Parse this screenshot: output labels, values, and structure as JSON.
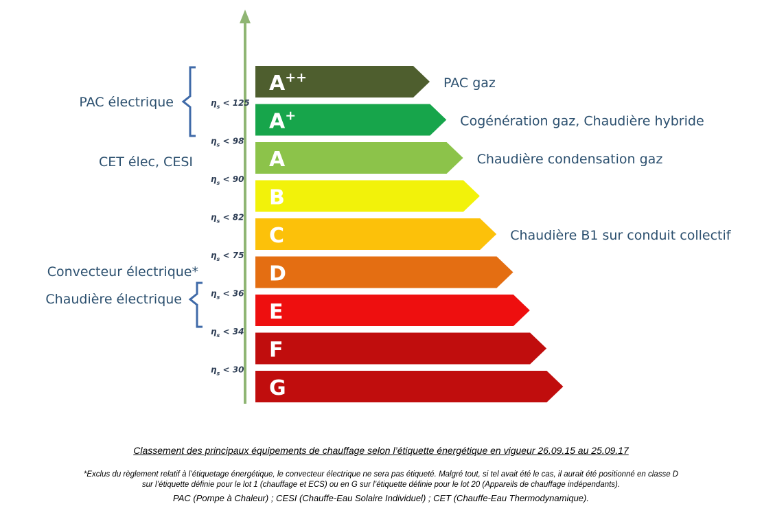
{
  "diagram": {
    "grades": [
      {
        "letter": "A",
        "sup": "++",
        "color": "#4e5e2e",
        "equipment": "PAC gaz"
      },
      {
        "letter": "A",
        "sup": "+",
        "color": "#17a54b",
        "equipment": "Cogénération gaz, Chaudière hybride"
      },
      {
        "letter": "A",
        "sup": "",
        "color": "#8cc34a",
        "equipment": "Chaudière condensation gaz"
      },
      {
        "letter": "B",
        "sup": "",
        "color": "#f2f20a",
        "equipment": ""
      },
      {
        "letter": "C",
        "sup": "",
        "color": "#fcc10a",
        "equipment": "Chaudière B1 sur conduit collectif"
      },
      {
        "letter": "D",
        "sup": "",
        "color": "#e46e12",
        "equipment": ""
      },
      {
        "letter": "E",
        "sup": "",
        "color": "#ee0f0f",
        "equipment": ""
      },
      {
        "letter": "F",
        "sup": "",
        "color": "#c00d0d",
        "equipment": ""
      },
      {
        "letter": "G",
        "sup": "",
        "color": "#c00d0d",
        "equipment": ""
      }
    ],
    "thresholds": [
      {
        "symbol": "η",
        "sub": "s",
        "text": " < 125"
      },
      {
        "symbol": "η",
        "sub": "s",
        "text": " < 98"
      },
      {
        "symbol": "η",
        "sub": "s",
        "text": " < 90"
      },
      {
        "symbol": "η",
        "sub": "s",
        "text": " < 82"
      },
      {
        "symbol": "η",
        "sub": "s",
        "text": " < 75"
      },
      {
        "symbol": "η",
        "sub": "s",
        "text": " < 36"
      },
      {
        "symbol": "η",
        "sub": "s",
        "text": " < 34"
      },
      {
        "symbol": "η",
        "sub": "s",
        "text": " < 30"
      }
    ],
    "left_labels": {
      "pac_electrique": "PAC électrique",
      "cet_cesi": "CET élec, CESI",
      "convecteur": "Convecteur électrique*",
      "chaudiere_electrique": "Chaudière électrique"
    },
    "axis_color": "#8fb573",
    "brace_color": "#3f6aa8"
  },
  "caption": {
    "title": "Classement des principaux équipements de chauffage selon l’étiquette énergétique en vigueur 26.09.15 au 25.09.17",
    "note_line1": "*Exclus du règlement relatif à l’étiquetage énergétique, le convecteur électrique ne sera pas étiqueté. Malgré tout, si tel avait été le cas, il aurait été positionné en classe D",
    "note_line2": "sur l’étiquette définie pour le lot 1 (chauffage et ECS) ou en G sur l’étiquette définie pour le lot 20 (Appareils de chauffage indépendants).",
    "acronyms": "PAC (Pompe à Chaleur) ; CESI (Chauffe-Eau Solaire Individuel) ; CET (Chauffe-Eau Thermodynamique)."
  }
}
